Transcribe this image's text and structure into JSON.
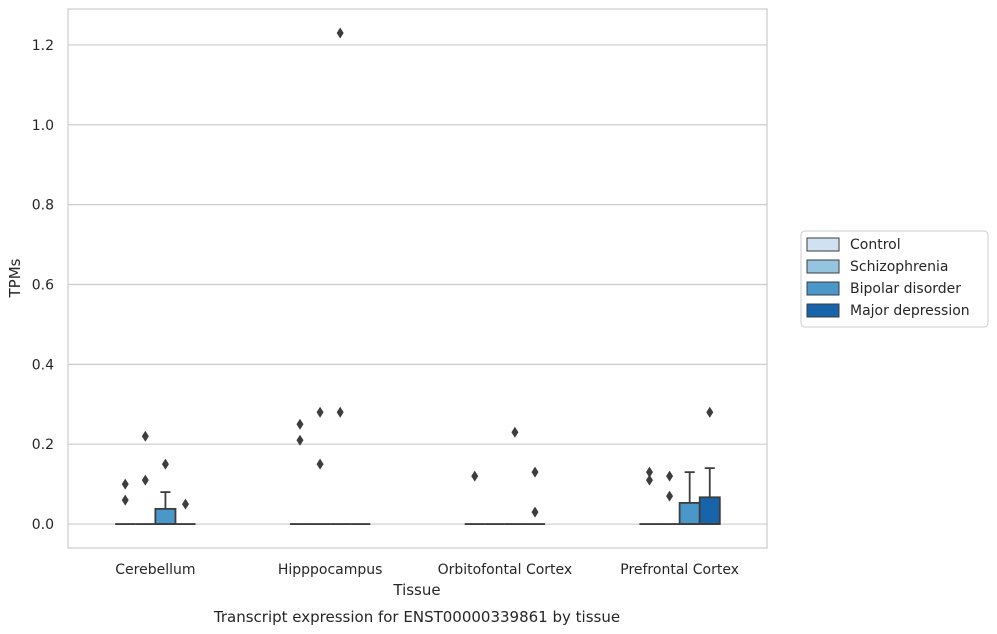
{
  "caption": "Transcript expression for ENST00000339861 by tissue",
  "chart_data": {
    "type": "box",
    "xlabel": "Tissue",
    "ylabel": "TPMs",
    "ylim": [
      -0.06,
      1.29
    ],
    "yticks": [
      0.0,
      0.2,
      0.4,
      0.6,
      0.8,
      1.0,
      1.2
    ],
    "ytick_labels": [
      "0.0",
      "0.2",
      "0.4",
      "0.6",
      "0.8",
      "1.0",
      "1.2"
    ],
    "grid": "horizontal",
    "legend_position": "right",
    "categories": [
      "Cerebellum",
      "Hipppocampus",
      "Orbitofontal Cortex",
      "Prefrontal Cortex"
    ],
    "series": [
      {
        "name": "Control",
        "color": "#d0e1f2",
        "boxes": [
          {
            "q1": 0,
            "median": 0,
            "q3": 0,
            "whisker_low": 0,
            "whisker_high": 0,
            "outliers": [
              0.1,
              0.06
            ]
          },
          {
            "q1": 0,
            "median": 0,
            "q3": 0,
            "whisker_low": 0,
            "whisker_high": 0,
            "outliers": [
              0.25,
              0.21
            ]
          },
          {
            "q1": 0,
            "median": 0,
            "q3": 0,
            "whisker_low": 0,
            "whisker_high": 0,
            "outliers": [
              0.12
            ]
          },
          {
            "q1": 0,
            "median": 0,
            "q3": 0,
            "whisker_low": 0,
            "whisker_high": 0,
            "outliers": [
              0.13,
              0.11
            ]
          }
        ]
      },
      {
        "name": "Schizophrenia",
        "color": "#94c4df",
        "boxes": [
          {
            "q1": 0,
            "median": 0,
            "q3": 0,
            "whisker_low": 0,
            "whisker_high": 0,
            "outliers": [
              0.22,
              0.11
            ]
          },
          {
            "q1": 0,
            "median": 0,
            "q3": 0,
            "whisker_low": 0,
            "whisker_high": 0,
            "outliers": [
              0.28,
              0.15
            ]
          },
          {
            "q1": 0,
            "median": 0,
            "q3": 0,
            "whisker_low": 0,
            "whisker_high": 0,
            "outliers": []
          },
          {
            "q1": 0,
            "median": 0,
            "q3": 0,
            "whisker_low": 0,
            "whisker_high": 0,
            "outliers": [
              0.12,
              0.07
            ]
          }
        ]
      },
      {
        "name": "Bipolar disorder",
        "color": "#4a98c9",
        "boxes": [
          {
            "q1": 0,
            "median": 0,
            "q3": 0.038,
            "whisker_low": 0,
            "whisker_high": 0.08,
            "outliers": [
              0.15
            ]
          },
          {
            "q1": 0,
            "median": 0,
            "q3": 0,
            "whisker_low": 0,
            "whisker_high": 0,
            "outliers": [
              1.23,
              0.28
            ]
          },
          {
            "q1": 0,
            "median": 0,
            "q3": 0,
            "whisker_low": 0,
            "whisker_high": 0,
            "outliers": [
              0.23
            ]
          },
          {
            "q1": 0,
            "median": 0,
            "q3": 0.053,
            "whisker_low": 0,
            "whisker_high": 0.13,
            "outliers": []
          }
        ]
      },
      {
        "name": "Major depression",
        "color": "#1764ab",
        "boxes": [
          {
            "q1": 0,
            "median": 0,
            "q3": 0,
            "whisker_low": 0,
            "whisker_high": 0,
            "outliers": [
              0.05
            ]
          },
          {
            "q1": 0,
            "median": 0,
            "q3": 0,
            "whisker_low": 0,
            "whisker_high": 0,
            "outliers": []
          },
          {
            "q1": 0,
            "median": 0,
            "q3": 0,
            "whisker_low": 0,
            "whisker_high": 0,
            "outliers": [
              0.13,
              0.03
            ]
          },
          {
            "q1": 0,
            "median": 0,
            "q3": 0.067,
            "whisker_low": 0,
            "whisker_high": 0.14,
            "outliers": [
              0.28
            ]
          }
        ]
      }
    ]
  }
}
